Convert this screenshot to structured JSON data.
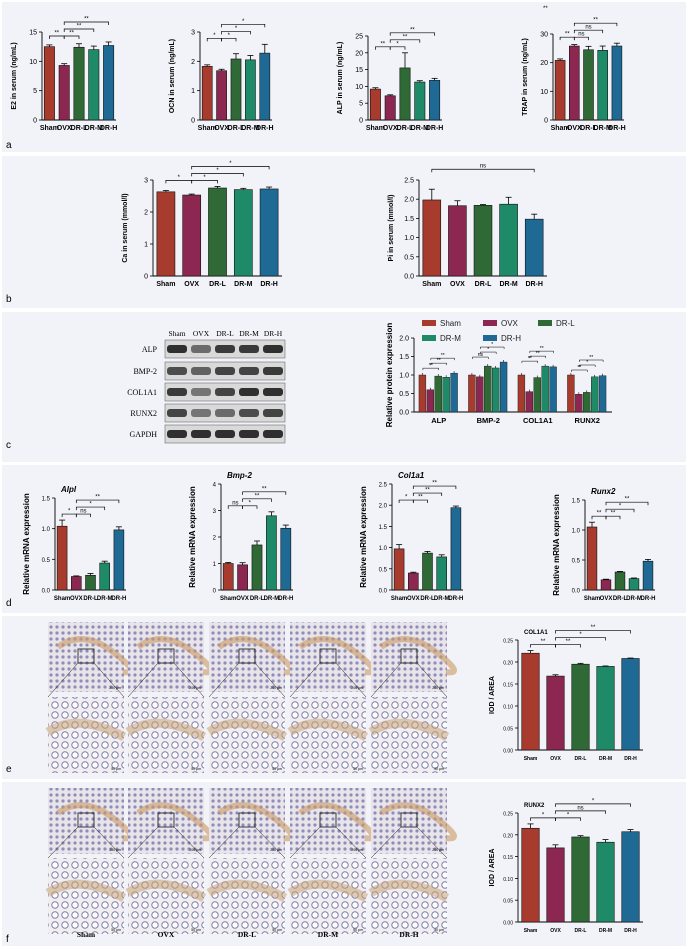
{
  "colors": {
    "Sham": "#a63b2e",
    "OVX": "#8b2750",
    "DR-L": "#2f6a36",
    "DR-M": "#1f8a67",
    "DR-H": "#1f6a94"
  },
  "panel_letters": [
    "a",
    "b",
    "c",
    "d",
    "e",
    "f"
  ],
  "groups": [
    "Sham",
    "OVX",
    "DR-L",
    "DR-M",
    "DR-H"
  ],
  "western_blot": {
    "lanes": [
      "Sham",
      "OVX",
      "DR-L",
      "DR-M",
      "DR-H"
    ],
    "rows": [
      "ALP",
      "BMP-2",
      "COL1A1",
      "RUNX2",
      "GAPDH"
    ]
  },
  "ihc": {
    "labels": [
      "Sham",
      "OVX",
      "DR-L",
      "DR-M",
      "DR-H"
    ],
    "scale_top": "200 μm",
    "scale_bottom": "50 μm"
  },
  "chart_data": [
    {
      "id": "E2",
      "type": "bar",
      "ylabel": "E2 in serum (ng/mL)",
      "categories": [
        "Sham",
        "OVX",
        "DR-L",
        "DR-M",
        "DR-H"
      ],
      "values": [
        12.5,
        9.3,
        12.4,
        12.0,
        12.7
      ],
      "errors": [
        0.3,
        0.3,
        0.6,
        0.6,
        0.6
      ],
      "ylim": [
        0,
        15
      ],
      "yticks": [
        0,
        5,
        10,
        15
      ],
      "sig": [
        {
          "a": 0,
          "b": 1,
          "t": "**",
          "lvl": 0
        },
        {
          "a": 1,
          "b": 2,
          "t": "**",
          "lvl": 0
        },
        {
          "a": 1,
          "b": 3,
          "t": "**",
          "lvl": 1
        },
        {
          "a": 1,
          "b": 4,
          "t": "**",
          "lvl": 2
        }
      ]
    },
    {
      "id": "OCN",
      "type": "bar",
      "ylabel": "OCN in serum (ng/mL)",
      "categories": [
        "Sham",
        "OVX",
        "DR-L",
        "DR-M",
        "DR-H"
      ],
      "values": [
        1.83,
        1.68,
        2.08,
        2.05,
        2.28
      ],
      "errors": [
        0.05,
        0.05,
        0.18,
        0.15,
        0.3
      ],
      "ylim": [
        0,
        3
      ],
      "yticks": [
        0,
        1,
        2,
        3
      ],
      "sig": [
        {
          "a": 0,
          "b": 1,
          "t": "*",
          "lvl": 0
        },
        {
          "a": 1,
          "b": 2,
          "t": "*",
          "lvl": 0
        },
        {
          "a": 1,
          "b": 3,
          "t": "*",
          "lvl": 1
        },
        {
          "a": 1,
          "b": 4,
          "t": "*",
          "lvl": 2
        }
      ]
    },
    {
      "id": "ALP",
      "type": "bar",
      "ylabel": "ALP in serum (ng/mL)",
      "categories": [
        "Sham",
        "OVX",
        "DR-L",
        "DR-M",
        "DR-H"
      ],
      "values": [
        9.2,
        7.2,
        15.5,
        11.3,
        11.8
      ],
      "errors": [
        0.4,
        0.3,
        4.5,
        0.4,
        0.6
      ],
      "ylim": [
        0,
        25
      ],
      "yticks": [
        0,
        5,
        10,
        15,
        20,
        25
      ],
      "sig": [
        {
          "a": 0,
          "b": 1,
          "t": "**",
          "lvl": 0
        },
        {
          "a": 1,
          "b": 2,
          "t": "*",
          "lvl": 0
        },
        {
          "a": 1,
          "b": 3,
          "t": "**",
          "lvl": 1
        },
        {
          "a": 1,
          "b": 4,
          "t": "**",
          "lvl": 2
        }
      ]
    },
    {
      "id": "TRAP",
      "type": "bar",
      "ylabel": "TRAP in serum (ng/mL)",
      "categories": [
        "Sham",
        "OVX",
        "DR-L",
        "DR-M",
        "DR-H"
      ],
      "values": [
        20.8,
        25.8,
        24.5,
        24.3,
        25.8
      ],
      "errors": [
        0.5,
        0.5,
        1.2,
        1.5,
        1.0
      ],
      "ylim": [
        0,
        30
      ],
      "yticks": [
        0,
        10,
        20,
        30
      ],
      "sig": [
        {
          "a": 0,
          "b": 1,
          "t": "**",
          "lvl": 0
        },
        {
          "a": 1,
          "b": 2,
          "t": "ns",
          "lvl": 0
        },
        {
          "a": 1,
          "b": 3,
          "t": "ns",
          "lvl": 1
        },
        {
          "a": 1,
          "b": 4,
          "t": "**",
          "lvl": 2
        }
      ],
      "top_note": "**"
    },
    {
      "id": "Ca",
      "type": "bar",
      "ylabel": "Ca in serum (mmol/l)",
      "categories": [
        "Sham",
        "OVX",
        "DR-L",
        "DR-M",
        "DR-H"
      ],
      "values": [
        2.63,
        2.53,
        2.75,
        2.7,
        2.72
      ],
      "errors": [
        0.04,
        0.03,
        0.05,
        0.04,
        0.06
      ],
      "ylim": [
        0,
        3
      ],
      "yticks": [
        0,
        1,
        2,
        3
      ],
      "sig": [
        {
          "a": 0,
          "b": 1,
          "t": "*",
          "lvl": 0
        },
        {
          "a": 1,
          "b": 2,
          "t": "*",
          "lvl": 0
        },
        {
          "a": 1,
          "b": 3,
          "t": "*",
          "lvl": 1
        },
        {
          "a": 1,
          "b": 4,
          "t": "*",
          "lvl": 2
        }
      ]
    },
    {
      "id": "Pi",
      "type": "bar",
      "ylabel": "Pi in serum (mmol/l)",
      "categories": [
        "Sham",
        "OVX",
        "DR-L",
        "DR-M",
        "DR-H"
      ],
      "values": [
        1.98,
        1.83,
        1.84,
        1.87,
        1.48
      ],
      "errors": [
        0.28,
        0.13,
        0.02,
        0.18,
        0.13
      ],
      "ylim": [
        0,
        2.5
      ],
      "yticks": [
        0.0,
        0.5,
        1.0,
        1.5,
        2.0,
        2.5
      ],
      "sig": [
        {
          "a": 0,
          "b": 4,
          "t": "ns",
          "lvl": 2
        }
      ]
    },
    {
      "id": "protein",
      "type": "bar",
      "ylabel": "Relative protein expression",
      "categories": [
        "ALP",
        "BMP-2",
        "COL1A1",
        "RUNX2"
      ],
      "ylim": [
        0,
        2.0
      ],
      "yticks": [
        0.0,
        0.5,
        1.0,
        1.5,
        2.0
      ],
      "series": [
        {
          "name": "Sham",
          "values": [
            1.0,
            1.0,
            1.0,
            1.0
          ]
        },
        {
          "name": "OVX",
          "values": [
            0.6,
            0.95,
            0.55,
            0.48
          ]
        },
        {
          "name": "DR-L",
          "values": [
            0.97,
            1.24,
            0.93,
            0.53
          ]
        },
        {
          "name": "DR-M",
          "values": [
            0.94,
            1.19,
            1.24,
            0.95
          ]
        },
        {
          "name": "DR-H",
          "values": [
            1.05,
            1.35,
            1.22,
            0.98
          ]
        }
      ],
      "sig_labels": [
        "**",
        "**",
        "**",
        "ns",
        "*",
        "*",
        "**",
        "**",
        "**",
        "**",
        "*",
        "**",
        "**",
        "ns"
      ]
    },
    {
      "id": "Alpl",
      "type": "bar",
      "title": "Alpl",
      "ylabel": "Relative mRNA expression",
      "categories": [
        "Sham",
        "OVX",
        "DR-L",
        "DR-M",
        "DR-H"
      ],
      "values": [
        1.04,
        0.22,
        0.24,
        0.44,
        0.98
      ],
      "errors": [
        0.1,
        0.01,
        0.03,
        0.03,
        0.05
      ],
      "ylim": [
        0,
        1.5
      ],
      "yticks": [
        0.0,
        0.5,
        1.0,
        1.5
      ],
      "sig": [
        {
          "a": 0,
          "b": 1,
          "t": "*",
          "lvl": 0
        },
        {
          "a": 1,
          "b": 2,
          "t": "ns",
          "lvl": 0
        },
        {
          "a": 1,
          "b": 3,
          "t": "*",
          "lvl": 1
        },
        {
          "a": 1,
          "b": 4,
          "t": "**",
          "lvl": 2
        }
      ]
    },
    {
      "id": "Bmp2",
      "type": "bar",
      "title": "Bmp-2",
      "ylabel": "Relative mRNA expression",
      "categories": [
        "Sham",
        "OVX",
        "DR-L",
        "DR-M",
        "DR-H"
      ],
      "values": [
        1.0,
        0.95,
        1.7,
        2.8,
        2.33
      ],
      "errors": [
        0.04,
        0.08,
        0.15,
        0.15,
        0.12
      ],
      "ylim": [
        0,
        4
      ],
      "yticks": [
        0,
        1,
        2,
        3,
        4
      ],
      "sig": [
        {
          "a": 0,
          "b": 1,
          "t": "ns",
          "lvl": 0
        },
        {
          "a": 1,
          "b": 2,
          "t": "*",
          "lvl": 0
        },
        {
          "a": 1,
          "b": 3,
          "t": "**",
          "lvl": 1
        },
        {
          "a": 1,
          "b": 4,
          "t": "**",
          "lvl": 2
        }
      ]
    },
    {
      "id": "Col1a1",
      "type": "bar",
      "title": "Col1a1",
      "ylabel": "Relative mRNA expression",
      "categories": [
        "Sham",
        "OVX",
        "DR-L",
        "DR-M",
        "DR-H"
      ],
      "values": [
        0.97,
        0.4,
        0.87,
        0.78,
        1.94
      ],
      "errors": [
        0.1,
        0.02,
        0.04,
        0.05,
        0.04
      ],
      "ylim": [
        0,
        2.5
      ],
      "yticks": [
        0.0,
        0.5,
        1.0,
        1.5,
        2.0,
        2.5
      ],
      "sig": [
        {
          "a": 0,
          "b": 1,
          "t": "*",
          "lvl": 0
        },
        {
          "a": 1,
          "b": 2,
          "t": "**",
          "lvl": 0
        },
        {
          "a": 1,
          "b": 3,
          "t": "**",
          "lvl": 1
        },
        {
          "a": 1,
          "b": 4,
          "t": "**",
          "lvl": 2
        }
      ]
    },
    {
      "id": "Runx2",
      "type": "bar",
      "title": "Runx2",
      "ylabel": "Relative mRNA expression",
      "categories": [
        "Sham",
        "OVX",
        "DR-L",
        "DR-M",
        "DR-H"
      ],
      "values": [
        1.05,
        0.17,
        0.3,
        0.19,
        0.48
      ],
      "errors": [
        0.08,
        0.01,
        0.01,
        0.01,
        0.03
      ],
      "ylim": [
        0,
        1.5
      ],
      "yticks": [
        0.0,
        0.5,
        1.0,
        1.5
      ],
      "sig": [
        {
          "a": 0,
          "b": 1,
          "t": "**",
          "lvl": 0
        },
        {
          "a": 1,
          "b": 2,
          "t": "**",
          "lvl": 0
        },
        {
          "a": 1,
          "b": 3,
          "t": "*",
          "lvl": 1
        },
        {
          "a": 1,
          "b": 4,
          "t": "**",
          "lvl": 2
        }
      ]
    },
    {
      "id": "COL1A1_IOD",
      "type": "bar",
      "title": "COL1A1",
      "ylabel": "IOD / AREA",
      "categories": [
        "Sham",
        "OVX",
        "DR-L",
        "DR-M",
        "DR-H"
      ],
      "values": [
        0.22,
        0.168,
        0.195,
        0.19,
        0.208
      ],
      "errors": [
        0.006,
        0.003,
        0.002,
        0.001,
        0.001
      ],
      "ylim": [
        0,
        0.25
      ],
      "yticks": [
        0.0,
        0.05,
        0.1,
        0.15,
        0.2,
        0.25
      ],
      "sig": [
        {
          "a": 0,
          "b": 1,
          "t": "**",
          "lvl": 0
        },
        {
          "a": 1,
          "b": 2,
          "t": "**",
          "lvl": 0
        },
        {
          "a": 1,
          "b": 3,
          "t": "*",
          "lvl": 1
        },
        {
          "a": 1,
          "b": 4,
          "t": "**",
          "lvl": 2
        }
      ]
    },
    {
      "id": "RUNX2_IOD",
      "type": "bar",
      "title": "RUNX2",
      "ylabel": "IOD / AREA",
      "categories": [
        "Sham",
        "OVX",
        "DR-L",
        "DR-M",
        "DR-H"
      ],
      "values": [
        0.215,
        0.17,
        0.195,
        0.183,
        0.207
      ],
      "errors": [
        0.01,
        0.007,
        0.003,
        0.006,
        0.005
      ],
      "ylim": [
        0,
        0.25
      ],
      "yticks": [
        0.0,
        0.05,
        0.1,
        0.15,
        0.2,
        0.25
      ],
      "sig": [
        {
          "a": 0,
          "b": 1,
          "t": "*",
          "lvl": 0
        },
        {
          "a": 1,
          "b": 2,
          "t": "*",
          "lvl": 0
        },
        {
          "a": 1,
          "b": 3,
          "t": "ns",
          "lvl": 1
        },
        {
          "a": 1,
          "b": 4,
          "t": "*",
          "lvl": 2
        }
      ]
    }
  ]
}
